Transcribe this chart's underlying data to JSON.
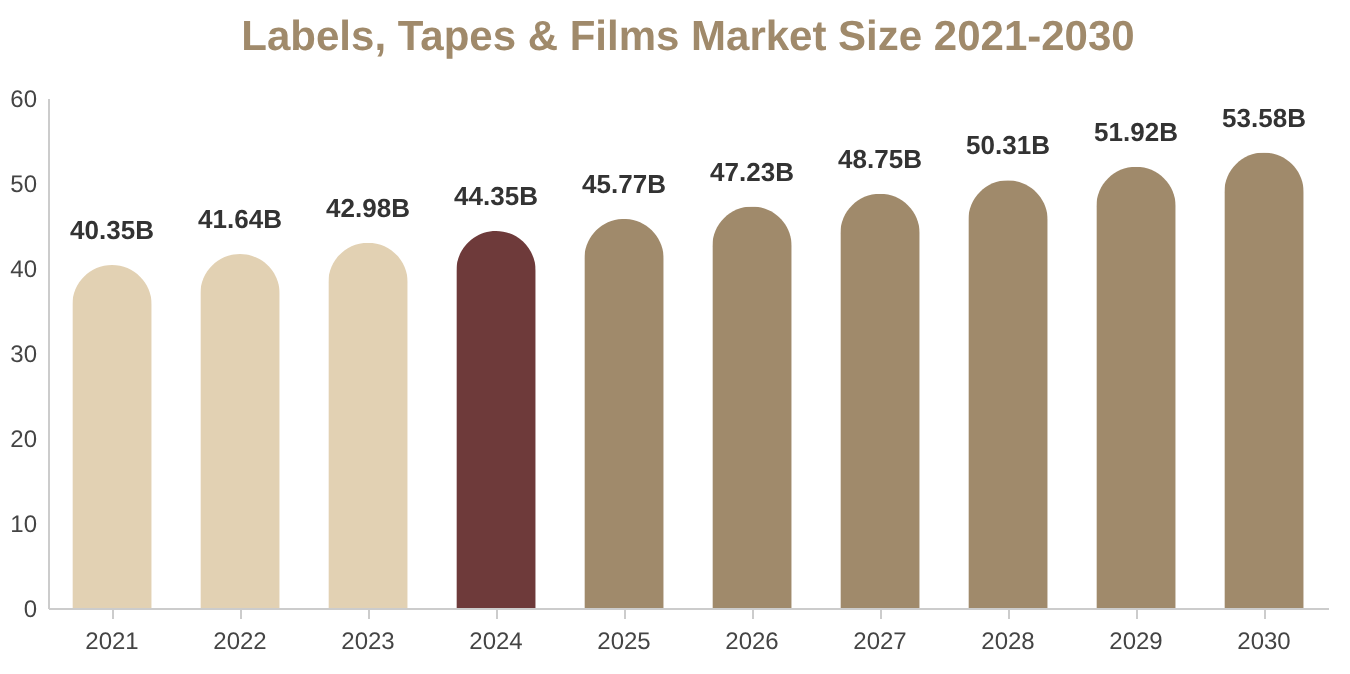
{
  "chart_data": {
    "type": "bar",
    "title": "Labels, Tapes & Films Market Size 2021-2030",
    "categories": [
      "2021",
      "2022",
      "2023",
      "2024",
      "2025",
      "2026",
      "2027",
      "2028",
      "2029",
      "2030"
    ],
    "values": [
      40.35,
      41.64,
      42.98,
      44.35,
      45.77,
      47.23,
      48.75,
      50.31,
      51.92,
      53.58
    ],
    "value_labels": [
      "40.35B",
      "41.64B",
      "42.98B",
      "44.35B",
      "45.77B",
      "47.23B",
      "48.75B",
      "50.31B",
      "51.92B",
      "53.58B"
    ],
    "colors": [
      "#e2d1b3",
      "#e2d1b3",
      "#e2d1b3",
      "#6e3a3a",
      "#a08a6b",
      "#a08a6b",
      "#a08a6b",
      "#a08a6b",
      "#a08a6b",
      "#a08a6b"
    ],
    "ylim": [
      0,
      60
    ],
    "yticks": [
      0,
      10,
      20,
      30,
      40,
      50,
      60
    ],
    "grid": false
  }
}
